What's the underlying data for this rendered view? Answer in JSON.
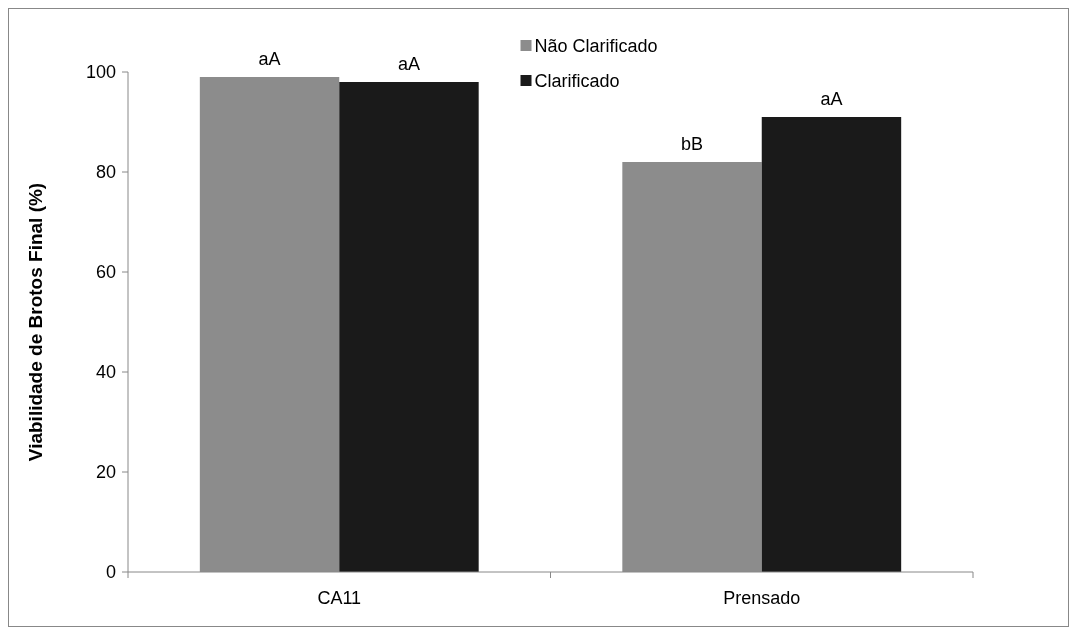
{
  "chart_data": {
    "type": "bar",
    "ylabel": "Viabilidade de Brotos Final (%)",
    "categories": [
      "CA11",
      "Prensado"
    ],
    "series": [
      {
        "name": "Não Clarificado",
        "color": "#8c8c8c",
        "values": [
          99,
          82
        ],
        "value_labels": [
          "aA",
          "bB"
        ]
      },
      {
        "name": "Clarificado",
        "color": "#1a1a1a",
        "values": [
          98,
          91
        ],
        "value_labels": [
          "aA",
          "aA"
        ]
      }
    ],
    "ylim": [
      0,
      100
    ],
    "yticks": [
      0,
      20,
      40,
      60,
      80,
      100
    ],
    "grid": false,
    "legend": "top"
  }
}
